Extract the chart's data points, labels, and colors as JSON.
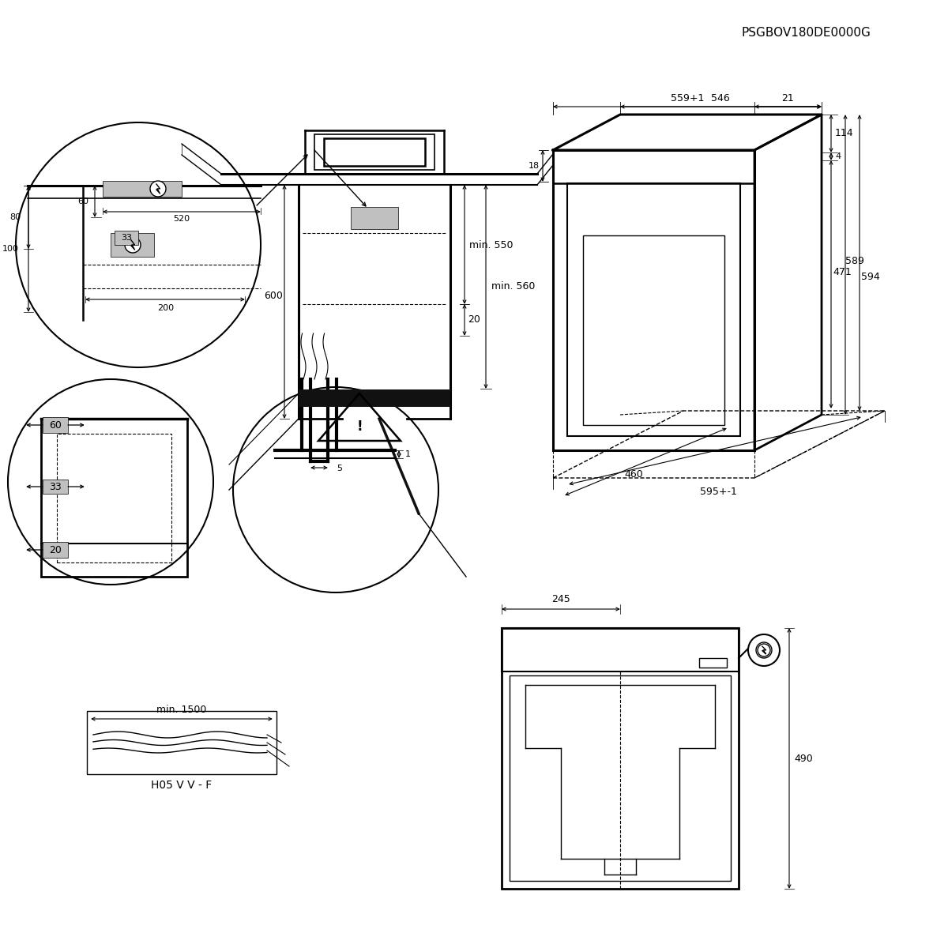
{
  "title": "PSGBOV180DE0000G",
  "bg": "#ffffff",
  "lc": "#000000",
  "gray": "#c0c0c0",
  "dark": "#111111",
  "d": {
    "559": "559+1",
    "546": "546",
    "21": "21",
    "18": "18",
    "114": "114",
    "4": "4",
    "589": "589",
    "471": "471",
    "594": "594",
    "595": "595+-1",
    "460": "460",
    "min550": "min. 550",
    "600": "600",
    "20": "20",
    "min560": "min. 560",
    "80": "80",
    "60c": "60",
    "520": "520",
    "33c": "33",
    "100": "100",
    "200": "200",
    "c60": "60",
    "c33": "33",
    "c20": "20",
    "g5": "5",
    "g1": "1",
    "cmin": "min. 1500",
    "clabel": "H05 V V - F",
    "b245": "245",
    "b490": "490"
  }
}
